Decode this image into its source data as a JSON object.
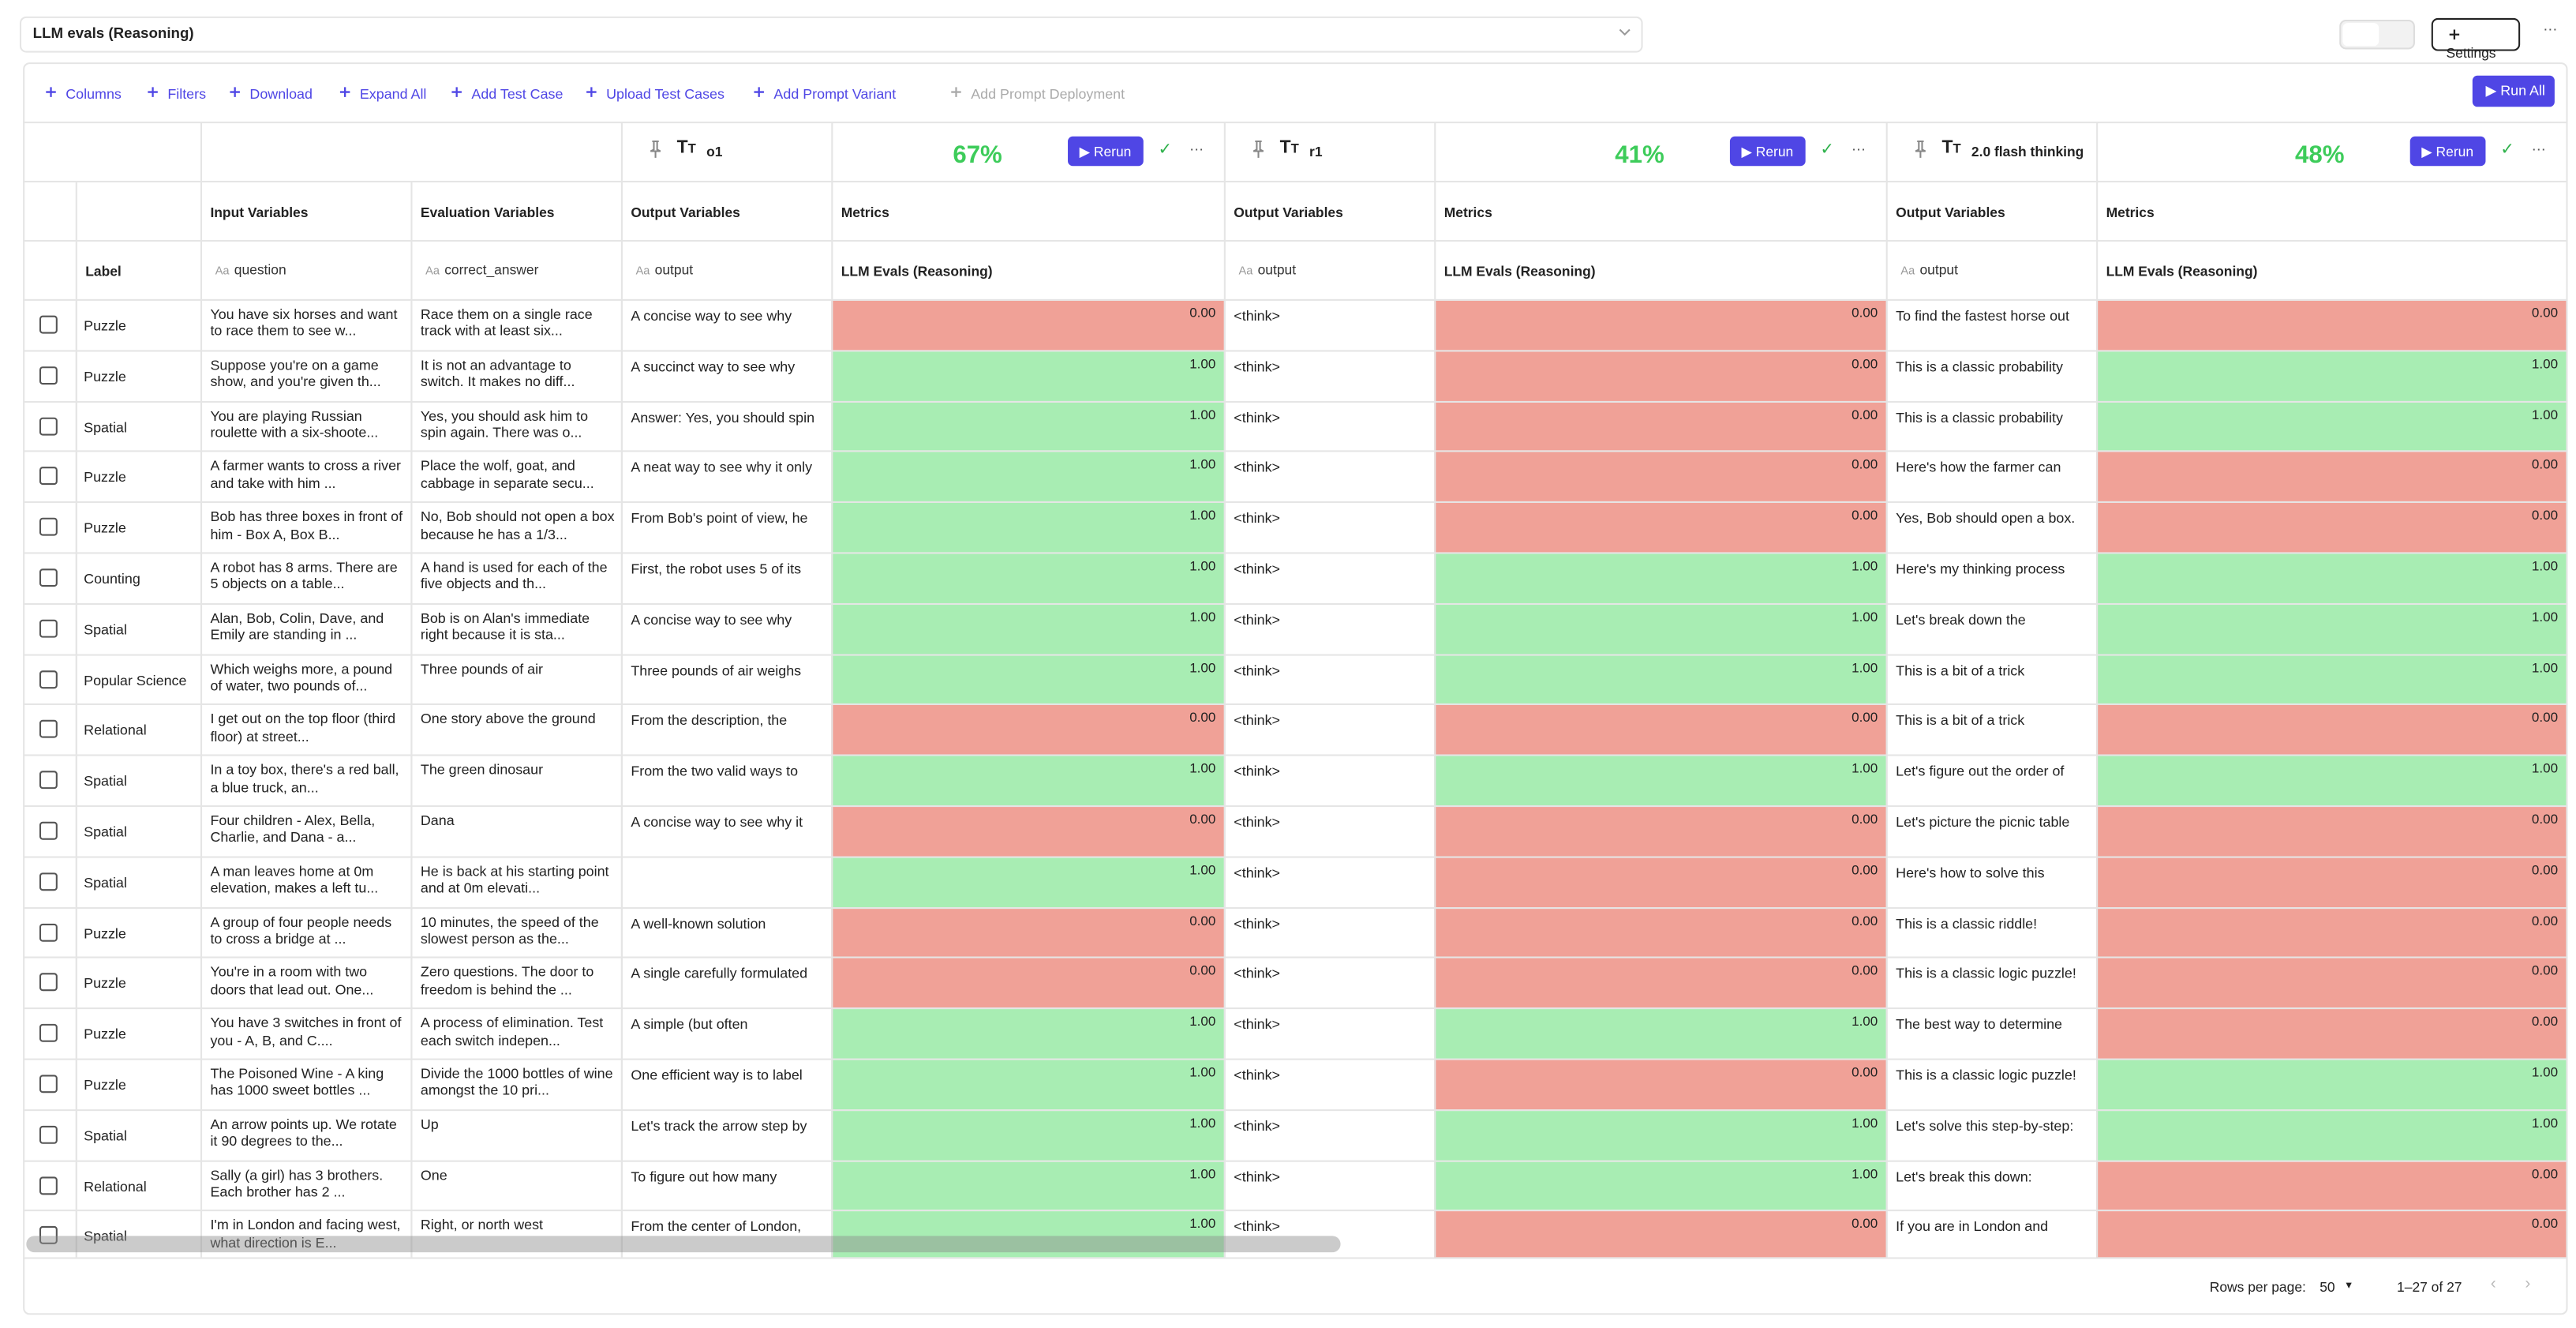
{
  "header": {
    "title": "LLM evals (Reasoning)",
    "settings": "Settings"
  },
  "toolbar": {
    "items": [
      "Columns",
      "Filters",
      "Download",
      "Expand All",
      "Add Test Case",
      "Upload Test Cases",
      "Add Prompt Variant",
      "Add Prompt Deployment"
    ],
    "run_all": "Run All"
  },
  "variants": [
    {
      "name": "o1",
      "score": "67%",
      "rerun": "Rerun"
    },
    {
      "name": "r1",
      "score": "41%",
      "rerun": "Rerun"
    },
    {
      "name": "2.0 flash thinking",
      "score": "48%",
      "rerun": "Rerun"
    }
  ],
  "columns": {
    "label": "Label",
    "input": "Input Variables",
    "evaluation": "Evaluation Variables",
    "output": "Output Variables",
    "metrics": "Metrics",
    "type_icon": "Aa",
    "question": "question",
    "answer": "correct_answer",
    "output_var": "output",
    "metric_name": "LLM Evals (Reasoning)"
  },
  "rows": [
    {
      "label": "Puzzle",
      "question": "You have six horses and want to race them to see w...",
      "answer": "Race them on a single race track with at least six...",
      "cells": [
        {
          "output": "A concise way to see why",
          "score": "0.00"
        },
        {
          "output": "<think>",
          "score": "0.00"
        },
        {
          "output": "To find the fastest horse out",
          "score": "0.00"
        }
      ]
    },
    {
      "label": "Puzzle",
      "question": "Suppose you're on a game show, and you're given th...",
      "answer": "It is not an advantage to switch. It makes no diff...",
      "cells": [
        {
          "output": "A succinct way to see why",
          "score": "1.00"
        },
        {
          "output": "<think>",
          "score": "0.00"
        },
        {
          "output": "This is a classic probability",
          "score": "1.00"
        }
      ]
    },
    {
      "label": "Spatial",
      "question": "You are playing Russian roulette with a six-shoote...",
      "answer": "Yes, you should ask him to spin again. There was o...",
      "cells": [
        {
          "output": "Answer: Yes, you should spin",
          "score": "1.00"
        },
        {
          "output": "<think>",
          "score": "0.00"
        },
        {
          "output": "This is a classic probability",
          "score": "1.00"
        }
      ]
    },
    {
      "label": "Puzzle",
      "question": "A farmer wants to cross a river and take with him ...",
      "answer": "Place the wolf, goat, and cabbage in separate secu...",
      "cells": [
        {
          "output": "A neat way to see why it only",
          "score": "1.00"
        },
        {
          "output": "<think>",
          "score": "0.00"
        },
        {
          "output": "Here's how the farmer can",
          "score": "0.00"
        }
      ]
    },
    {
      "label": "Puzzle",
      "question": "Bob has three boxes in front of him - Box A, Box B...",
      "answer": "No, Bob should not open a box because he has a 1/3...",
      "cells": [
        {
          "output": "From Bob's point of view, he",
          "score": "1.00"
        },
        {
          "output": "<think>",
          "score": "0.00"
        },
        {
          "output": "Yes, Bob should open a box.",
          "score": "0.00"
        }
      ]
    },
    {
      "label": "Counting",
      "question": "A robot has 8 arms. There are 5 objects on a table...",
      "answer": "A hand is used for each of the five objects and th...",
      "cells": [
        {
          "output": "First, the robot uses 5 of its",
          "score": "1.00"
        },
        {
          "output": "<think>",
          "score": "1.00"
        },
        {
          "output": "Here's my thinking process",
          "score": "1.00"
        }
      ]
    },
    {
      "label": "Spatial",
      "question": "Alan, Bob, Colin, Dave, and Emily are standing in ...",
      "answer": "Bob is on Alan's immediate right because it is sta...",
      "cells": [
        {
          "output": "A concise way to see why",
          "score": "1.00"
        },
        {
          "output": "<think>",
          "score": "1.00"
        },
        {
          "output": "Let's break down the",
          "score": "1.00"
        }
      ]
    },
    {
      "label": "Popular Science",
      "question": "Which weighs more, a pound of water, two pounds of...",
      "answer": "Three pounds of air",
      "cells": [
        {
          "output": "Three pounds of air weighs",
          "score": "1.00"
        },
        {
          "output": "<think>",
          "score": "1.00"
        },
        {
          "output": "This is a bit of a trick",
          "score": "1.00"
        }
      ]
    },
    {
      "label": "Relational",
      "question": "I get out on the top floor (third floor) at street...",
      "answer": "One story above the ground",
      "cells": [
        {
          "output": "From the description, the",
          "score": "0.00"
        },
        {
          "output": "<think>",
          "score": "0.00"
        },
        {
          "output": "This is a bit of a trick",
          "score": "0.00"
        }
      ]
    },
    {
      "label": "Spatial",
      "question": "In a toy box, there's a red ball, a blue truck, an...",
      "answer": "The green dinosaur",
      "cells": [
        {
          "output": "From the two valid ways to",
          "score": "1.00"
        },
        {
          "output": "<think>",
          "score": "1.00"
        },
        {
          "output": "Let's figure out the order of",
          "score": "1.00"
        }
      ]
    },
    {
      "label": "Spatial",
      "question": "Four children - Alex, Bella, Charlie, and Dana - a...",
      "answer": "Dana",
      "cells": [
        {
          "output": "A concise way to see why it",
          "score": "0.00"
        },
        {
          "output": "<think>",
          "score": "0.00"
        },
        {
          "output": "Let's picture the picnic table",
          "score": "0.00"
        }
      ]
    },
    {
      "label": "Spatial",
      "question": "A man leaves home at 0m elevation, makes a left tu...",
      "answer": "He is back at his starting point and at 0m elevati...",
      "cells": [
        {
          "output": null,
          "score": "1.00"
        },
        {
          "output": "<think>",
          "score": "0.00"
        },
        {
          "output": "Here's how to solve this",
          "score": "0.00"
        }
      ]
    },
    {
      "label": "Puzzle",
      "question": "A group of four people needs to cross a bridge at ...",
      "answer": "10 minutes, the speed of the slowest person as the...",
      "cells": [
        {
          "output": "A well-known solution",
          "score": "0.00"
        },
        {
          "output": "<think>",
          "score": "0.00"
        },
        {
          "output": "This is a classic riddle!",
          "score": "0.00"
        }
      ]
    },
    {
      "label": "Puzzle",
      "question": "You're in a room with two doors that lead out. One...",
      "answer": "Zero questions. The door to freedom is behind the ...",
      "cells": [
        {
          "output": "A single carefully formulated",
          "score": "0.00"
        },
        {
          "output": "<think>",
          "score": "0.00"
        },
        {
          "output": "This is a classic logic puzzle!",
          "score": "0.00"
        }
      ]
    },
    {
      "label": "Puzzle",
      "question": "You have 3 switches in front of you - A, B, and C....",
      "answer": "A process of elimination. Test each switch indepen...",
      "cells": [
        {
          "output": "A simple (but often",
          "score": "1.00"
        },
        {
          "output": "<think>",
          "score": "1.00"
        },
        {
          "output": "The best way to determine",
          "score": "0.00"
        }
      ]
    },
    {
      "label": "Puzzle",
      "question": "The Poisoned Wine - A king has 1000 sweet bottles ...",
      "answer": "Divide the 1000 bottles of wine amongst the 10 pri...",
      "cells": [
        {
          "output": "One efficient way is to label",
          "score": "1.00"
        },
        {
          "output": "<think>",
          "score": "0.00"
        },
        {
          "output": "This is a classic logic puzzle!",
          "score": "1.00"
        }
      ]
    },
    {
      "label": "Spatial",
      "question": "An arrow points up. We rotate it 90 degrees to the...",
      "answer": "Up",
      "cells": [
        {
          "output": "Let's track the arrow step by",
          "score": "1.00"
        },
        {
          "output": "<think>",
          "score": "1.00"
        },
        {
          "output": "Let's solve this step-by-step:",
          "score": "1.00"
        }
      ]
    },
    {
      "label": "Relational",
      "question": "Sally (a girl) has 3 brothers. Each brother has 2 ...",
      "answer": "One",
      "cells": [
        {
          "output": "To figure out how many",
          "score": "1.00"
        },
        {
          "output": "<think>",
          "score": "1.00"
        },
        {
          "output": "Let's break this down:",
          "score": "0.00"
        }
      ]
    },
    {
      "label": "Spatial",
      "question": "I'm in London and facing west, what direction is E...",
      "answer": "Right, or north west",
      "cells": [
        {
          "output": "From the center of London,",
          "score": "1.00"
        },
        {
          "output": "<think>",
          "score": "0.00"
        },
        {
          "output": "If you are in London and",
          "score": "0.00"
        }
      ]
    }
  ],
  "footer": {
    "rows_per_page_label": "Rows per page:",
    "rows_per_page": "50",
    "range": "1–27 of 27"
  }
}
